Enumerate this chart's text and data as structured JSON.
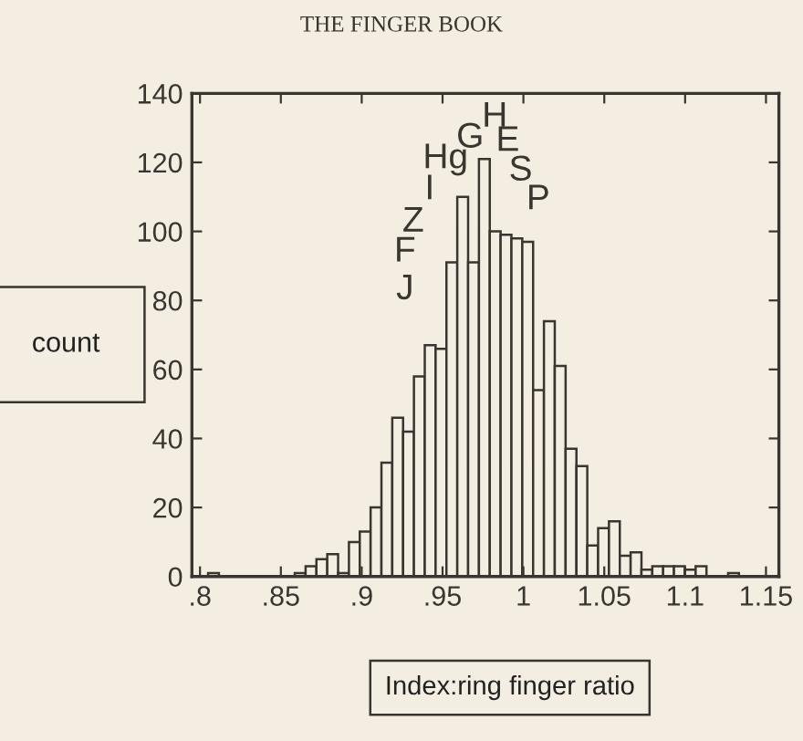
{
  "chart_data": {
    "type": "histogram",
    "title": "THE FINGER BOOK",
    "xlabel": "Index:ring finger ratio",
    "ylabel": "count",
    "bins": [
      0.805,
      0.8117,
      0.8184,
      0.8251,
      0.8318,
      0.8385,
      0.8452,
      0.8519,
      0.8586,
      0.8653,
      0.872,
      0.8787,
      0.8854,
      0.8921,
      0.8988,
      0.9055,
      0.9122,
      0.9189,
      0.9256,
      0.9323,
      0.939,
      0.9457,
      0.9524,
      0.9591,
      0.9658,
      0.9725,
      0.9792,
      0.9859,
      0.9926,
      0.9993,
      1.006,
      1.0127,
      1.0194,
      1.0261,
      1.0328,
      1.0395,
      1.0462,
      1.0529,
      1.0596,
      1.0663,
      1.073,
      1.0797,
      1.0864,
      1.0931,
      1.0998,
      1.1065,
      1.1132,
      1.1199,
      1.1266,
      1.1333
    ],
    "values": [
      1,
      0,
      0,
      0,
      0,
      0,
      0,
      0,
      1,
      3,
      5,
      6.5,
      1,
      10,
      13,
      20,
      33,
      46,
      42,
      58,
      67,
      66,
      91,
      110,
      91,
      121,
      100,
      99,
      98,
      97,
      54,
      74,
      61,
      37,
      32,
      9,
      14,
      16,
      6,
      7,
      2,
      3,
      3,
      3,
      2,
      3,
      0,
      0,
      1
    ],
    "color": "#f4ede2",
    "xlim": [
      0.795,
      1.158
    ],
    "ylim": [
      0,
      140
    ],
    "xticks": [
      {
        "value": 0.8,
        "label": ".8"
      },
      {
        "value": 0.85,
        "label": ".85"
      },
      {
        "value": 0.9,
        "label": ".9"
      },
      {
        "value": 0.95,
        "label": ".95"
      },
      1,
      1.05,
      1.1,
      1.15
    ],
    "yticks": [
      0,
      20,
      40,
      60,
      80,
      100,
      120,
      140
    ],
    "grid": false,
    "legend": false,
    "annotations": [
      "J",
      "F",
      "Z",
      "I",
      "Hg",
      "G",
      "H",
      "E",
      "S",
      "P"
    ]
  }
}
